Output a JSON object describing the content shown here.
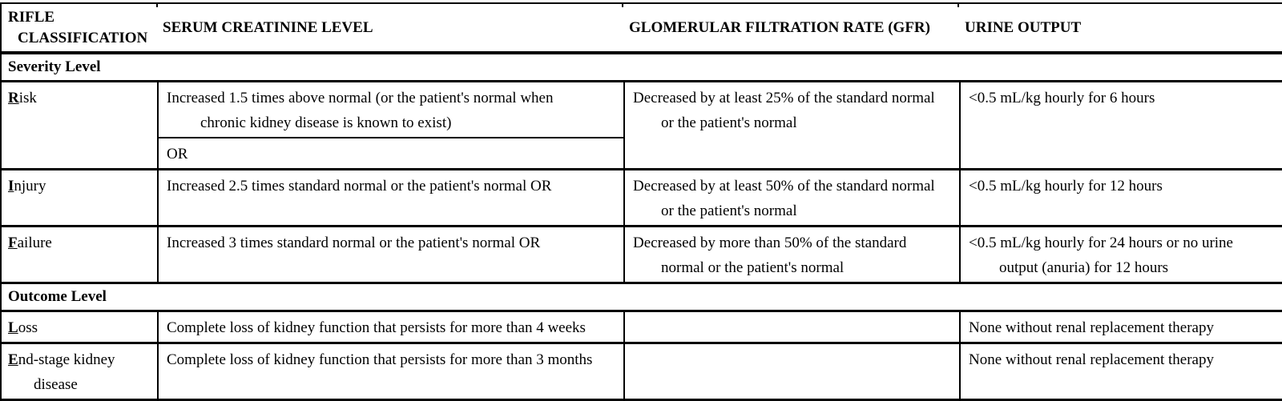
{
  "table": {
    "colors": {
      "border": "#000000",
      "text": "#000000",
      "background": "#ffffff"
    },
    "headers": {
      "col1_line1": "RIFLE",
      "col1_line2": "CLASSIFICATION",
      "col2": "SERUM CREATININE LEVEL",
      "col3": "GLOMERULAR FILTRATION RATE (GFR)",
      "col4": "URINE OUTPUT"
    },
    "sections": {
      "severity": "Severity Level",
      "outcome": "Outcome Level"
    },
    "rows": {
      "risk": {
        "label_lead": "R",
        "label_rest": "isk",
        "serum_l1": "Increased 1.5 times above normal (or the patient's normal when",
        "serum_l2": "chronic kidney disease is known to exist)",
        "or_text": "OR",
        "gfr_l1": "Decreased by at least 25% of the standard normal",
        "gfr_l2": "or the patient's normal",
        "urine_l1": "<0.5 mL/kg hourly for 6 hours"
      },
      "injury": {
        "label_lead": "I",
        "label_rest": "njury",
        "serum_l1": "Increased 2.5 times standard normal or the patient's normal OR",
        "gfr_l1": "Decreased by at least 50% of the standard normal",
        "gfr_l2": "or the patient's normal",
        "urine_l1": "<0.5 mL/kg hourly for 12 hours"
      },
      "failure": {
        "label_lead": "F",
        "label_rest": "ailure",
        "serum_l1": "Increased 3 times standard normal or the patient's normal OR",
        "gfr_l1": "Decreased by more than 50% of the standard",
        "gfr_l2": "normal or the patient's normal",
        "urine_l1": "<0.5 mL/kg hourly for 24 hours or no urine",
        "urine_l2": "output (anuria) for 12 hours"
      },
      "loss": {
        "label_lead": "L",
        "label_rest": "oss",
        "serum_l1": "Complete loss of kidney function that persists for more than 4 weeks",
        "urine_l1": "None without renal replacement therapy"
      },
      "endstage": {
        "label_lead": "E",
        "label_rest": "nd-stage kidney",
        "label_l2": "disease",
        "serum_l1": "Complete loss of kidney function that persists for more than 3 months",
        "urine_l1": "None without renal replacement therapy"
      }
    }
  }
}
